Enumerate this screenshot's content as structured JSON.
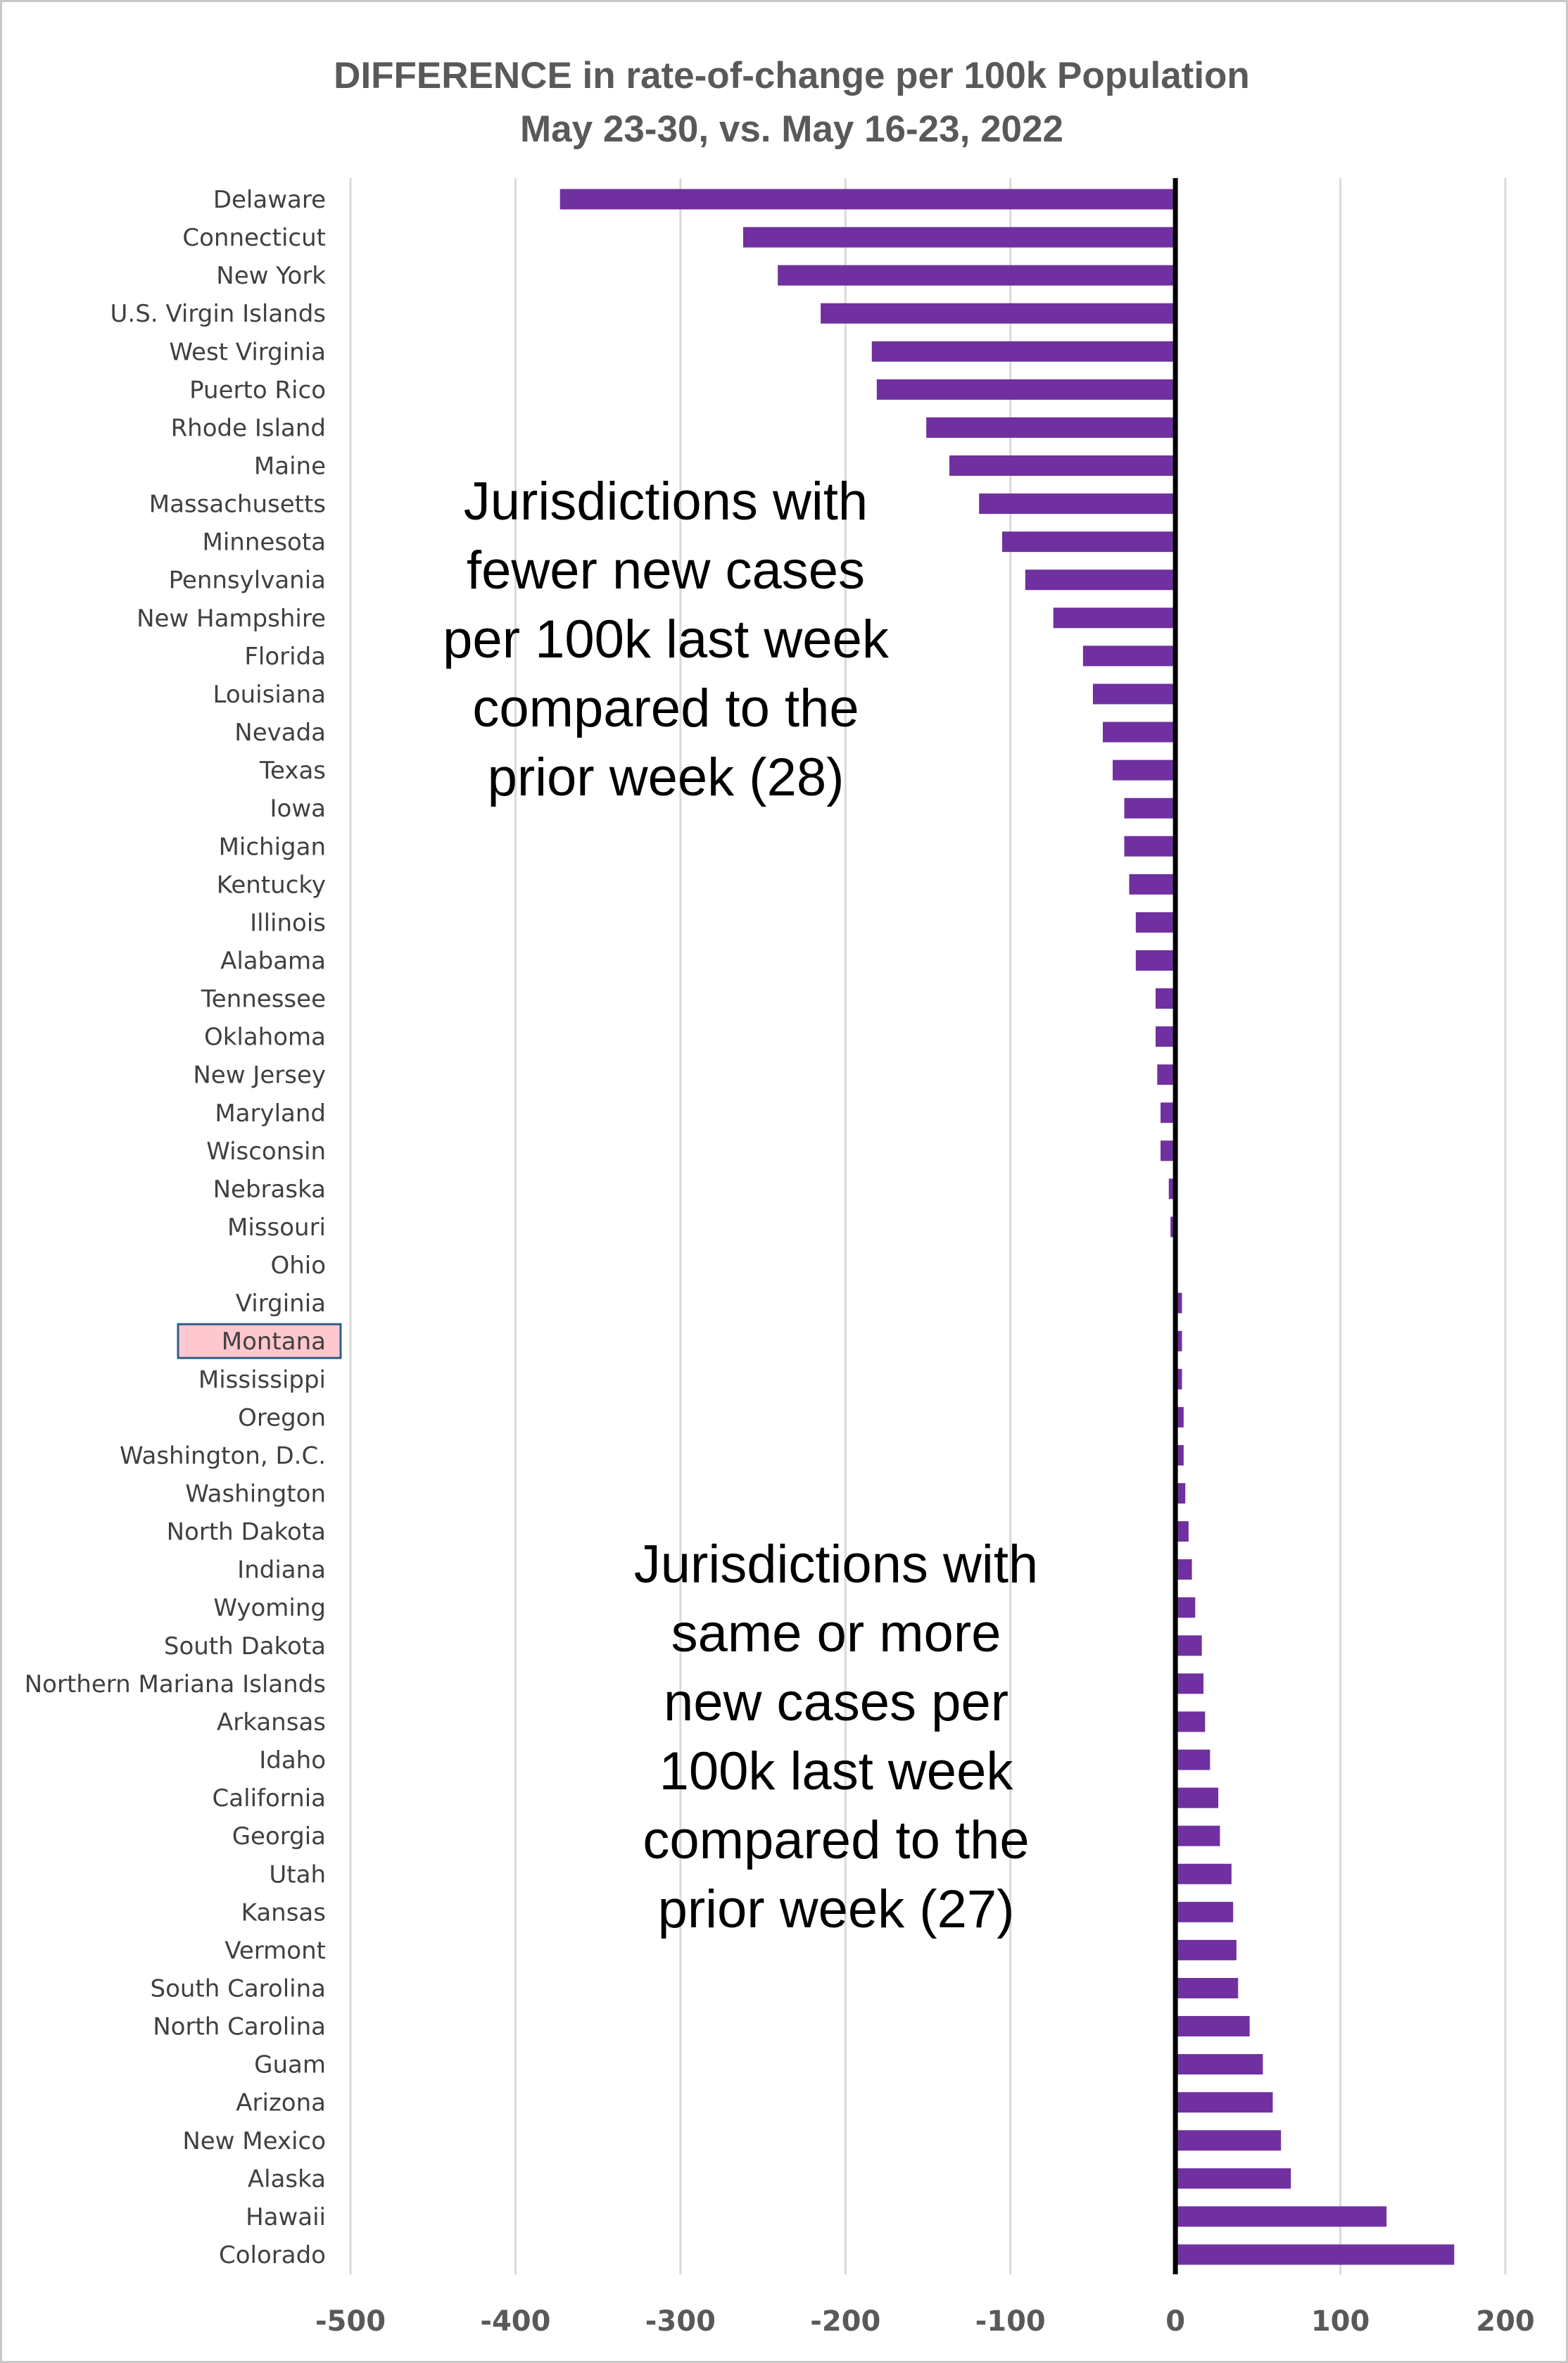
{
  "chart_data": {
    "type": "bar",
    "orientation": "horizontal",
    "title": "DIFFERENCE in rate-of-change per 100k Population",
    "subtitle": "May 23-30, vs. May 16-23, 2022",
    "xlabel": "",
    "ylabel": "",
    "xlim": [
      -500,
      200
    ],
    "xticks": [
      -500,
      -400,
      -300,
      -200,
      -100,
      0,
      100,
      200
    ],
    "xtick_labels": [
      "-500",
      "-400",
      "-300",
      "-200",
      "-100",
      "0",
      "100",
      "200"
    ],
    "grid": "vertical gridlines",
    "bar_color": "#7030a0",
    "highlight_category": "Montana",
    "highlight_color": "#ffc7ce",
    "categories": [
      "Delaware",
      "Connecticut",
      "New York",
      "U.S. Virgin Islands",
      "West Virginia",
      "Puerto Rico",
      "Rhode Island",
      "Maine",
      "Massachusetts",
      "Minnesota",
      "Pennsylvania",
      "New Hampshire",
      "Florida",
      "Louisiana",
      "Nevada",
      "Texas",
      "Iowa",
      "Michigan",
      "Kentucky",
      "Illinois",
      "Alabama",
      "Tennessee",
      "Oklahoma",
      "New Jersey",
      "Maryland",
      "Wisconsin",
      "Nebraska",
      "Missouri",
      "Ohio",
      "Virginia",
      "Montana",
      "Mississippi",
      "Oregon",
      "Washington, D.C.",
      "Washington",
      "North Dakota",
      "Indiana",
      "Wyoming",
      "South Dakota",
      "Northern Mariana Islands",
      "Arkansas",
      "Idaho",
      "California",
      "Georgia",
      "Utah",
      "Kansas",
      "Vermont",
      "South Carolina",
      "North Carolina",
      "Guam",
      "Arizona",
      "New Mexico",
      "Alaska",
      "Hawaii",
      "Colorado"
    ],
    "values": [
      -373,
      -262,
      -241,
      -215,
      -184,
      -181,
      -151,
      -137,
      -119,
      -105,
      -91,
      -74,
      -56,
      -50,
      -44,
      -38,
      -31,
      -31,
      -28,
      -24,
      -24,
      -12,
      -12,
      -11,
      -9,
      -9,
      -4,
      -3,
      0,
      4,
      4,
      4,
      5,
      5,
      6,
      8,
      10,
      12,
      16,
      17,
      18,
      21,
      26,
      27,
      34,
      35,
      37,
      38,
      45,
      53,
      59,
      64,
      70,
      128,
      169
    ],
    "annotations": [
      {
        "id": "fewer",
        "lines": [
          "Jurisdictions with",
          "fewer new cases",
          "per 100k last week",
          "compared to the",
          "prior week (28)"
        ]
      },
      {
        "id": "more",
        "lines": [
          "Jurisdictions with",
          "same or more",
          "new cases per",
          "100k last week",
          "compared to the",
          "prior week (27)"
        ]
      }
    ]
  }
}
